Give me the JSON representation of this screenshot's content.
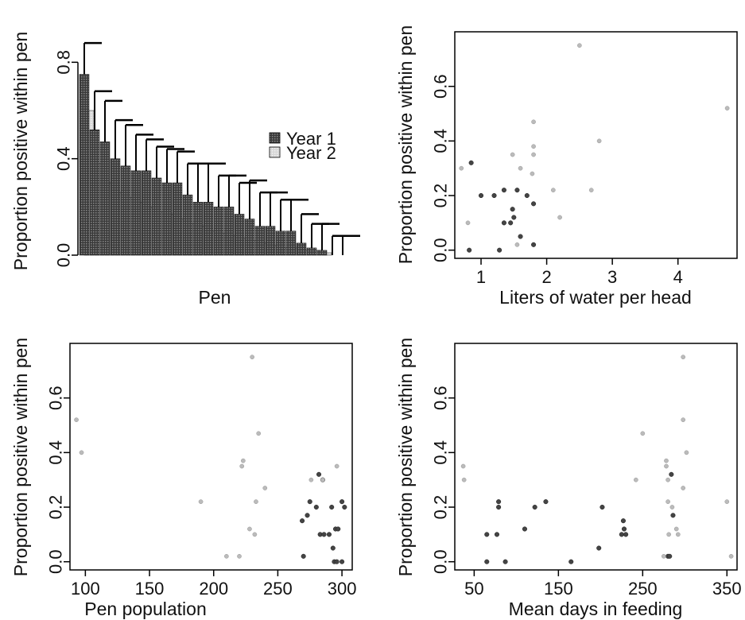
{
  "chart_data": [
    {
      "type": "bar",
      "xlabel": "Pen",
      "ylabel": "Proportion positive within pen",
      "ylim": [
        0,
        0.9
      ],
      "yticks": [
        "0.0",
        "0.4",
        "0.8"
      ],
      "legend": {
        "placement": "top-right",
        "year1": "Year 1",
        "year2": "Year 2"
      },
      "series": [
        {
          "name": "Year 1",
          "color": "#555555",
          "values": [
            0.75,
            0.52,
            0.47,
            0.4,
            0.37,
            0.35,
            0.35,
            0.32,
            0.3,
            0.3,
            0.25,
            0.22,
            0.22,
            0.2,
            0.2,
            0.17,
            0.15,
            0.12,
            0.12,
            0.1,
            0.1,
            0.05,
            0.03,
            0.02,
            0.0,
            0.0
          ],
          "upper": [
            0.88,
            0.68,
            0.64,
            0.56,
            0.54,
            0.5,
            0.48,
            0.45,
            0.44,
            0.43,
            0.38,
            0.38,
            0.38,
            0.33,
            0.33,
            0.3,
            0.31,
            0.26,
            0.26,
            0.23,
            0.23,
            0.17,
            0.13,
            0.13,
            0.08,
            0.08
          ]
        },
        {
          "name": "Year 2",
          "color": "#cccccc",
          "values": [
            0.6,
            0.38,
            0.3,
            0.26,
            0.24,
            0.22,
            0.2,
            0.18,
            0.17,
            0.15,
            0.13,
            0.12,
            0.1,
            0.09,
            0.08,
            0.07,
            0.06,
            0.05,
            0.04,
            0.03,
            0.03,
            0.02,
            0.02,
            0.01,
            0.0,
            0.0
          ]
        }
      ]
    },
    {
      "type": "scatter",
      "xlabel": "Liters of water per head",
      "ylabel": "Proportion positive within pen",
      "xlim": [
        0.6,
        4.9
      ],
      "ylim": [
        -0.03,
        0.8
      ],
      "xticks": [
        1,
        2,
        3,
        4
      ],
      "yticks": [
        0.0,
        0.2,
        0.4,
        0.6
      ],
      "series": [
        {
          "name": "Year 1",
          "color": "#444444",
          "points": [
            [
              0.82,
              0.0
            ],
            [
              0.85,
              0.32
            ],
            [
              1.0,
              0.2
            ],
            [
              1.2,
              0.2
            ],
            [
              1.28,
              0.0
            ],
            [
              1.35,
              0.1
            ],
            [
              1.35,
              0.22
            ],
            [
              1.45,
              0.1
            ],
            [
              1.48,
              0.15
            ],
            [
              1.5,
              0.12
            ],
            [
              1.55,
              0.22
            ],
            [
              1.6,
              0.05
            ],
            [
              1.7,
              0.2
            ],
            [
              1.8,
              0.02
            ],
            [
              1.8,
              0.17
            ]
          ]
        },
        {
          "name": "Year 2",
          "color": "#bbbbbb",
          "points": [
            [
              0.7,
              0.3
            ],
            [
              0.8,
              0.1
            ],
            [
              1.48,
              0.35
            ],
            [
              1.55,
              0.02
            ],
            [
              1.6,
              0.3
            ],
            [
              1.78,
              0.28
            ],
            [
              1.8,
              0.47
            ],
            [
              1.8,
              0.38
            ],
            [
              1.8,
              0.35
            ],
            [
              2.1,
              0.22
            ],
            [
              2.2,
              0.12
            ],
            [
              2.5,
              0.75
            ],
            [
              2.68,
              0.22
            ],
            [
              2.8,
              0.4
            ],
            [
              4.75,
              0.52
            ]
          ]
        }
      ]
    },
    {
      "type": "scatter",
      "xlabel": "Pen population",
      "ylabel": "Proportion positive within pen",
      "xlim": [
        88,
        308
      ],
      "ylim": [
        -0.03,
        0.8
      ],
      "xticks": [
        100,
        150,
        200,
        250,
        300
      ],
      "yticks": [
        0.0,
        0.2,
        0.4,
        0.6
      ],
      "series": [
        {
          "name": "Year 1",
          "color": "#444444",
          "points": [
            [
              270,
              0.02
            ],
            [
              269,
              0.15
            ],
            [
              273,
              0.17
            ],
            [
              275,
              0.22
            ],
            [
              280,
              0.2
            ],
            [
              283,
              0.1
            ],
            [
              282,
              0.32
            ],
            [
              285,
              0.3
            ],
            [
              286,
              0.1
            ],
            [
              290,
              0.1
            ],
            [
              292,
              0.2
            ],
            [
              293,
              0.05
            ],
            [
              294,
              0.0
            ],
            [
              295,
              0.12
            ],
            [
              296,
              0.0
            ],
            [
              297,
              0.12
            ],
            [
              300,
              0.0
            ],
            [
              300,
              0.22
            ],
            [
              302,
              0.2
            ]
          ]
        },
        {
          "name": "Year 2",
          "color": "#bbbbbb",
          "points": [
            [
              93,
              0.52
            ],
            [
              97,
              0.4
            ],
            [
              190,
              0.22
            ],
            [
              210,
              0.02
            ],
            [
              220,
              0.02
            ],
            [
              222,
              0.35
            ],
            [
              223,
              0.37
            ],
            [
              228,
              0.12
            ],
            [
              230,
              0.75
            ],
            [
              232,
              0.1
            ],
            [
              233,
              0.22
            ],
            [
              235,
              0.47
            ],
            [
              240,
              0.27
            ],
            [
              276,
              0.3
            ],
            [
              285,
              0.3
            ],
            [
              296,
              0.35
            ]
          ]
        }
      ]
    },
    {
      "type": "scatter",
      "xlabel": "Mean days in feeding",
      "ylabel": "Proportion positive within pen",
      "xlim": [
        27,
        362
      ],
      "ylim": [
        -0.03,
        0.8
      ],
      "xticks": [
        50,
        150,
        250,
        350
      ],
      "yticks": [
        0.0,
        0.2,
        0.4,
        0.6
      ],
      "series": [
        {
          "name": "Year 1",
          "color": "#444444",
          "points": [
            [
              65,
              0.0
            ],
            [
              65,
              0.1
            ],
            [
              77,
              0.1
            ],
            [
              79,
              0.2
            ],
            [
              79,
              0.22
            ],
            [
              87,
              0.0
            ],
            [
              110,
              0.12
            ],
            [
              122,
              0.2
            ],
            [
              135,
              0.22
            ],
            [
              165,
              0.0
            ],
            [
              198,
              0.05
            ],
            [
              202,
              0.2
            ],
            [
              225,
              0.1
            ],
            [
              227,
              0.15
            ],
            [
              230,
              0.1
            ],
            [
              228,
              0.12
            ],
            [
              280,
              0.02
            ],
            [
              282,
              0.02
            ],
            [
              284,
              0.32
            ],
            [
              286,
              0.17
            ]
          ]
        },
        {
          "name": "Year 2",
          "color": "#bbbbbb",
          "points": [
            [
              37,
              0.35
            ],
            [
              38,
              0.3
            ],
            [
              242,
              0.3
            ],
            [
              250,
              0.47
            ],
            [
              275,
              0.02
            ],
            [
              278,
              0.37
            ],
            [
              278,
              0.35
            ],
            [
              280,
              0.22
            ],
            [
              280,
              0.3
            ],
            [
              281,
              0.1
            ],
            [
              285,
              0.2
            ],
            [
              290,
              0.12
            ],
            [
              292,
              0.1
            ],
            [
              298,
              0.75
            ],
            [
              298,
              0.52
            ],
            [
              298,
              0.27
            ],
            [
              302,
              0.4
            ],
            [
              350,
              0.22
            ],
            [
              355,
              0.02
            ]
          ]
        }
      ]
    }
  ]
}
